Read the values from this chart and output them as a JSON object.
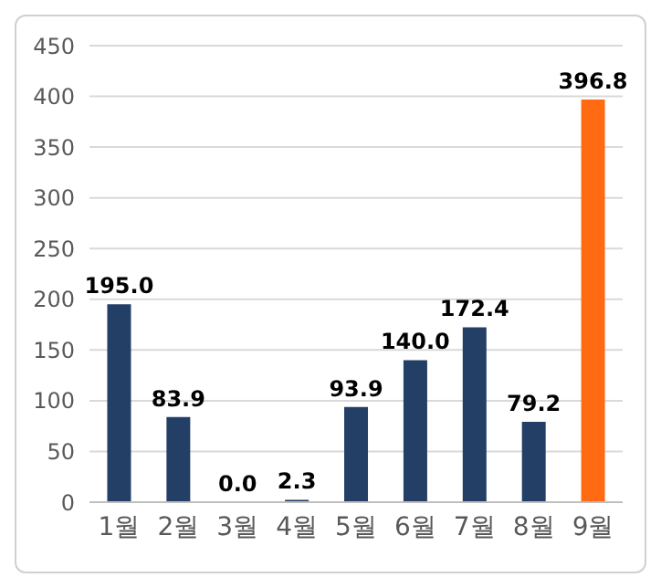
{
  "chart_data": {
    "type": "bar",
    "categories": [
      "1월",
      "2월",
      "3월",
      "4월",
      "5월",
      "6월",
      "7월",
      "8월",
      "9월"
    ],
    "values": [
      195.0,
      83.9,
      0.0,
      2.3,
      93.9,
      140.0,
      172.4,
      79.2,
      396.8
    ],
    "colors": [
      "#243f66",
      "#243f66",
      "#243f66",
      "#243f66",
      "#243f66",
      "#243f66",
      "#243f66",
      "#243f66",
      "#ff6a13"
    ],
    "value_labels": [
      "195.0",
      "83.9",
      "0.0",
      "2.3",
      "93.9",
      "140.0",
      "172.4",
      "79.2",
      "396.8"
    ],
    "ylim": [
      0,
      450
    ],
    "yticks": [
      0,
      50,
      100,
      150,
      200,
      250,
      300,
      350,
      400,
      450
    ],
    "grid": "y"
  }
}
